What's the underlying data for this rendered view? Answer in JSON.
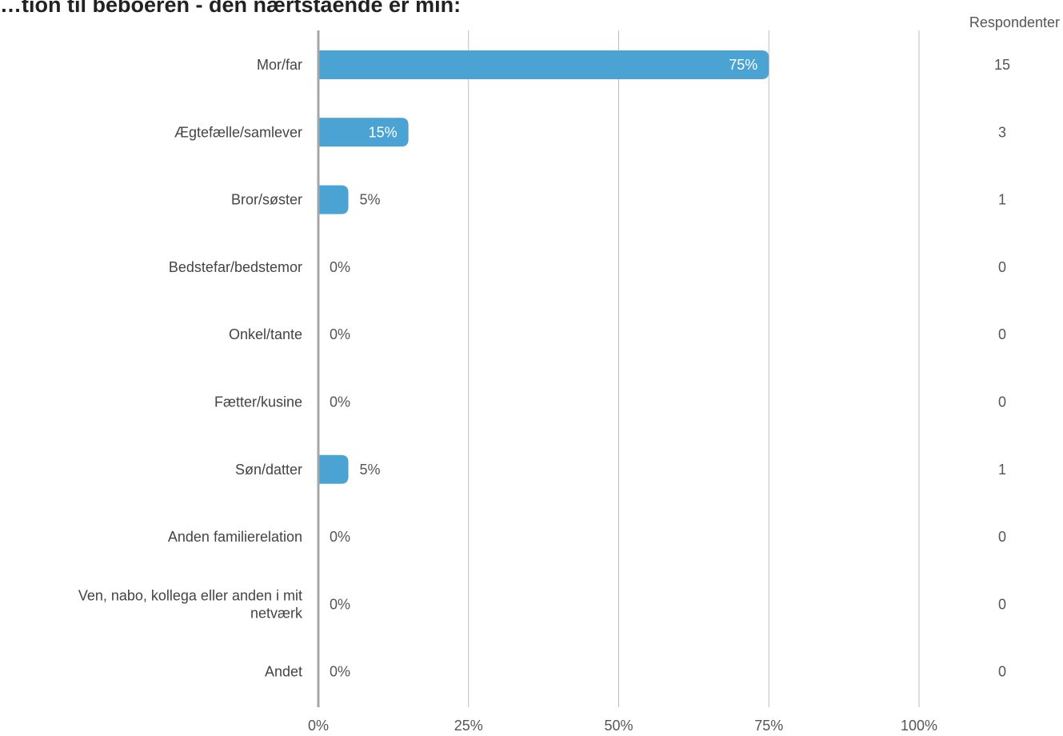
{
  "title": "…tion til beboeren - den nærtstående er min:",
  "chart_data": {
    "type": "bar",
    "orientation": "horizontal",
    "title": "…tion til beboeren - den nærtstående er min:",
    "categories": [
      [
        "Mor/far"
      ],
      [
        "Ægtefælle/samlever"
      ],
      [
        "Bror/søster"
      ],
      [
        "Bedstefar/bedstemor"
      ],
      [
        "Onkel/tante"
      ],
      [
        "Fætter/kusine"
      ],
      [
        "Søn/datter"
      ],
      [
        "Anden familierelation"
      ],
      [
        "Ven, nabo, kollega eller anden i mit",
        "netværk"
      ],
      [
        "Andet"
      ]
    ],
    "values": [
      75,
      15,
      5,
      0,
      0,
      0,
      5,
      0,
      0,
      0
    ],
    "value_labels": [
      "75%",
      "15%",
      "5%",
      "0%",
      "0%",
      "0%",
      "5%",
      "0%",
      "0%",
      "0%"
    ],
    "respondents_header": "Respondenter",
    "respondents": [
      "15",
      "3",
      "1",
      "0",
      "0",
      "0",
      "1",
      "0",
      "0",
      "0"
    ],
    "x_ticks": [
      0,
      25,
      50,
      75,
      100
    ],
    "x_tick_labels": [
      "0%",
      "25%",
      "50%",
      "75%",
      "100%"
    ],
    "xlim": [
      0,
      100
    ],
    "grid": true,
    "bar_color": "#4aa3d3",
    "grid_color": "#bdbdbd",
    "axis_color": "#a6a6a6",
    "inside_label_color": "#ffffff",
    "outside_label_color": "#555555"
  }
}
